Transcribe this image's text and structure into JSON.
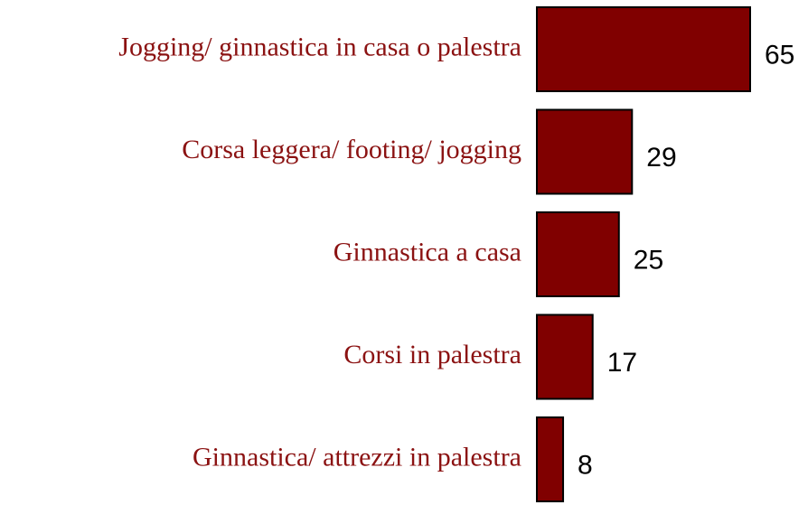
{
  "chart_data": {
    "type": "barh",
    "categories": [
      "Jogging/ ginnastica in casa o palestra",
      "Corsa leggera/ footing/ jogging",
      "Ginnastica a casa",
      "Corsi in palestra",
      "Ginnastica/ attrezzi in palestra"
    ],
    "values": [
      65,
      29,
      25,
      17,
      8
    ],
    "color": "#800000"
  }
}
